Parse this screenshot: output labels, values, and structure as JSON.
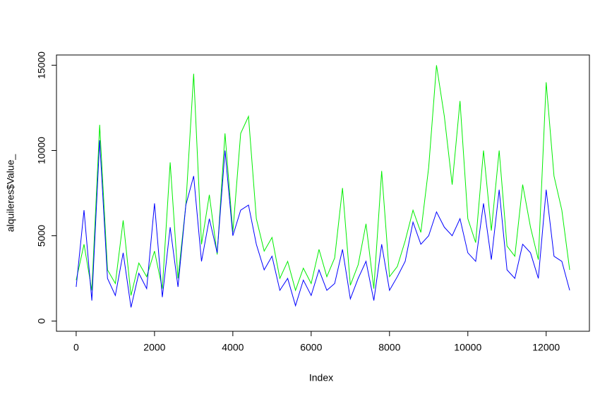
{
  "chart_data": {
    "type": "line",
    "xlabel": "Index",
    "ylabel": "alquileres$Value_",
    "x": [
      0,
      200,
      400,
      600,
      800,
      1000,
      1200,
      1400,
      1600,
      1800,
      2000,
      2200,
      2400,
      2600,
      2800,
      3000,
      3200,
      3400,
      3600,
      3800,
      4000,
      4200,
      4400,
      4600,
      4800,
      5000,
      5200,
      5400,
      5600,
      5800,
      6000,
      6200,
      6400,
      6600,
      6800,
      7000,
      7200,
      7400,
      7600,
      7800,
      8000,
      8200,
      8400,
      8600,
      8800,
      9000,
      9200,
      9400,
      9600,
      9800,
      10000,
      10200,
      10400,
      10600,
      10800,
      11000,
      11200,
      11400,
      11600,
      11800,
      12000,
      12200,
      12400,
      12600
    ],
    "series": [
      {
        "color": "#00ee00",
        "values": [
          2400,
          4500,
          1800,
          11500,
          3000,
          2200,
          5900,
          1500,
          3400,
          2600,
          4100,
          1900,
          9300,
          2500,
          6800,
          14500,
          4500,
          7400,
          3900,
          11000,
          5200,
          11000,
          12000,
          6000,
          4100,
          4900,
          2500,
          3500,
          1800,
          3100,
          2200,
          4200,
          2600,
          3700,
          7800,
          2100,
          3300,
          5700,
          1900,
          8800,
          2600,
          3200,
          4700,
          6500,
          5200,
          9000,
          15000,
          12000,
          8000,
          12900,
          6000,
          4600,
          10000,
          5300,
          10000,
          4400,
          3800,
          8000,
          5500,
          3600,
          14000,
          8500,
          6500,
          3000
        ]
      },
      {
        "color": "#0000ff",
        "values": [
          2000,
          6500,
          1200,
          10600,
          2500,
          1500,
          4000,
          800,
          2800,
          1900,
          6900,
          1400,
          5500,
          2000,
          6800,
          8500,
          3500,
          6000,
          4000,
          10000,
          5000,
          6500,
          6800,
          4500,
          3000,
          3800,
          1800,
          2500,
          900,
          2400,
          1500,
          3000,
          1800,
          2200,
          4200,
          1300,
          2500,
          3500,
          1200,
          4500,
          1800,
          2600,
          3500,
          5800,
          4500,
          5000,
          6400,
          5500,
          5000,
          6000,
          4000,
          3500,
          6900,
          3600,
          7700,
          3000,
          2500,
          4500,
          4000,
          2500,
          7700,
          3800,
          3500,
          1800
        ]
      }
    ],
    "xlim": [
      -503,
      13104
    ],
    "xticks": [
      0,
      2000,
      4000,
      6000,
      8000,
      10000,
      12000
    ],
    "ylim": [
      -600,
      15600
    ],
    "yticks": [
      0,
      5000,
      10000,
      15000
    ]
  }
}
